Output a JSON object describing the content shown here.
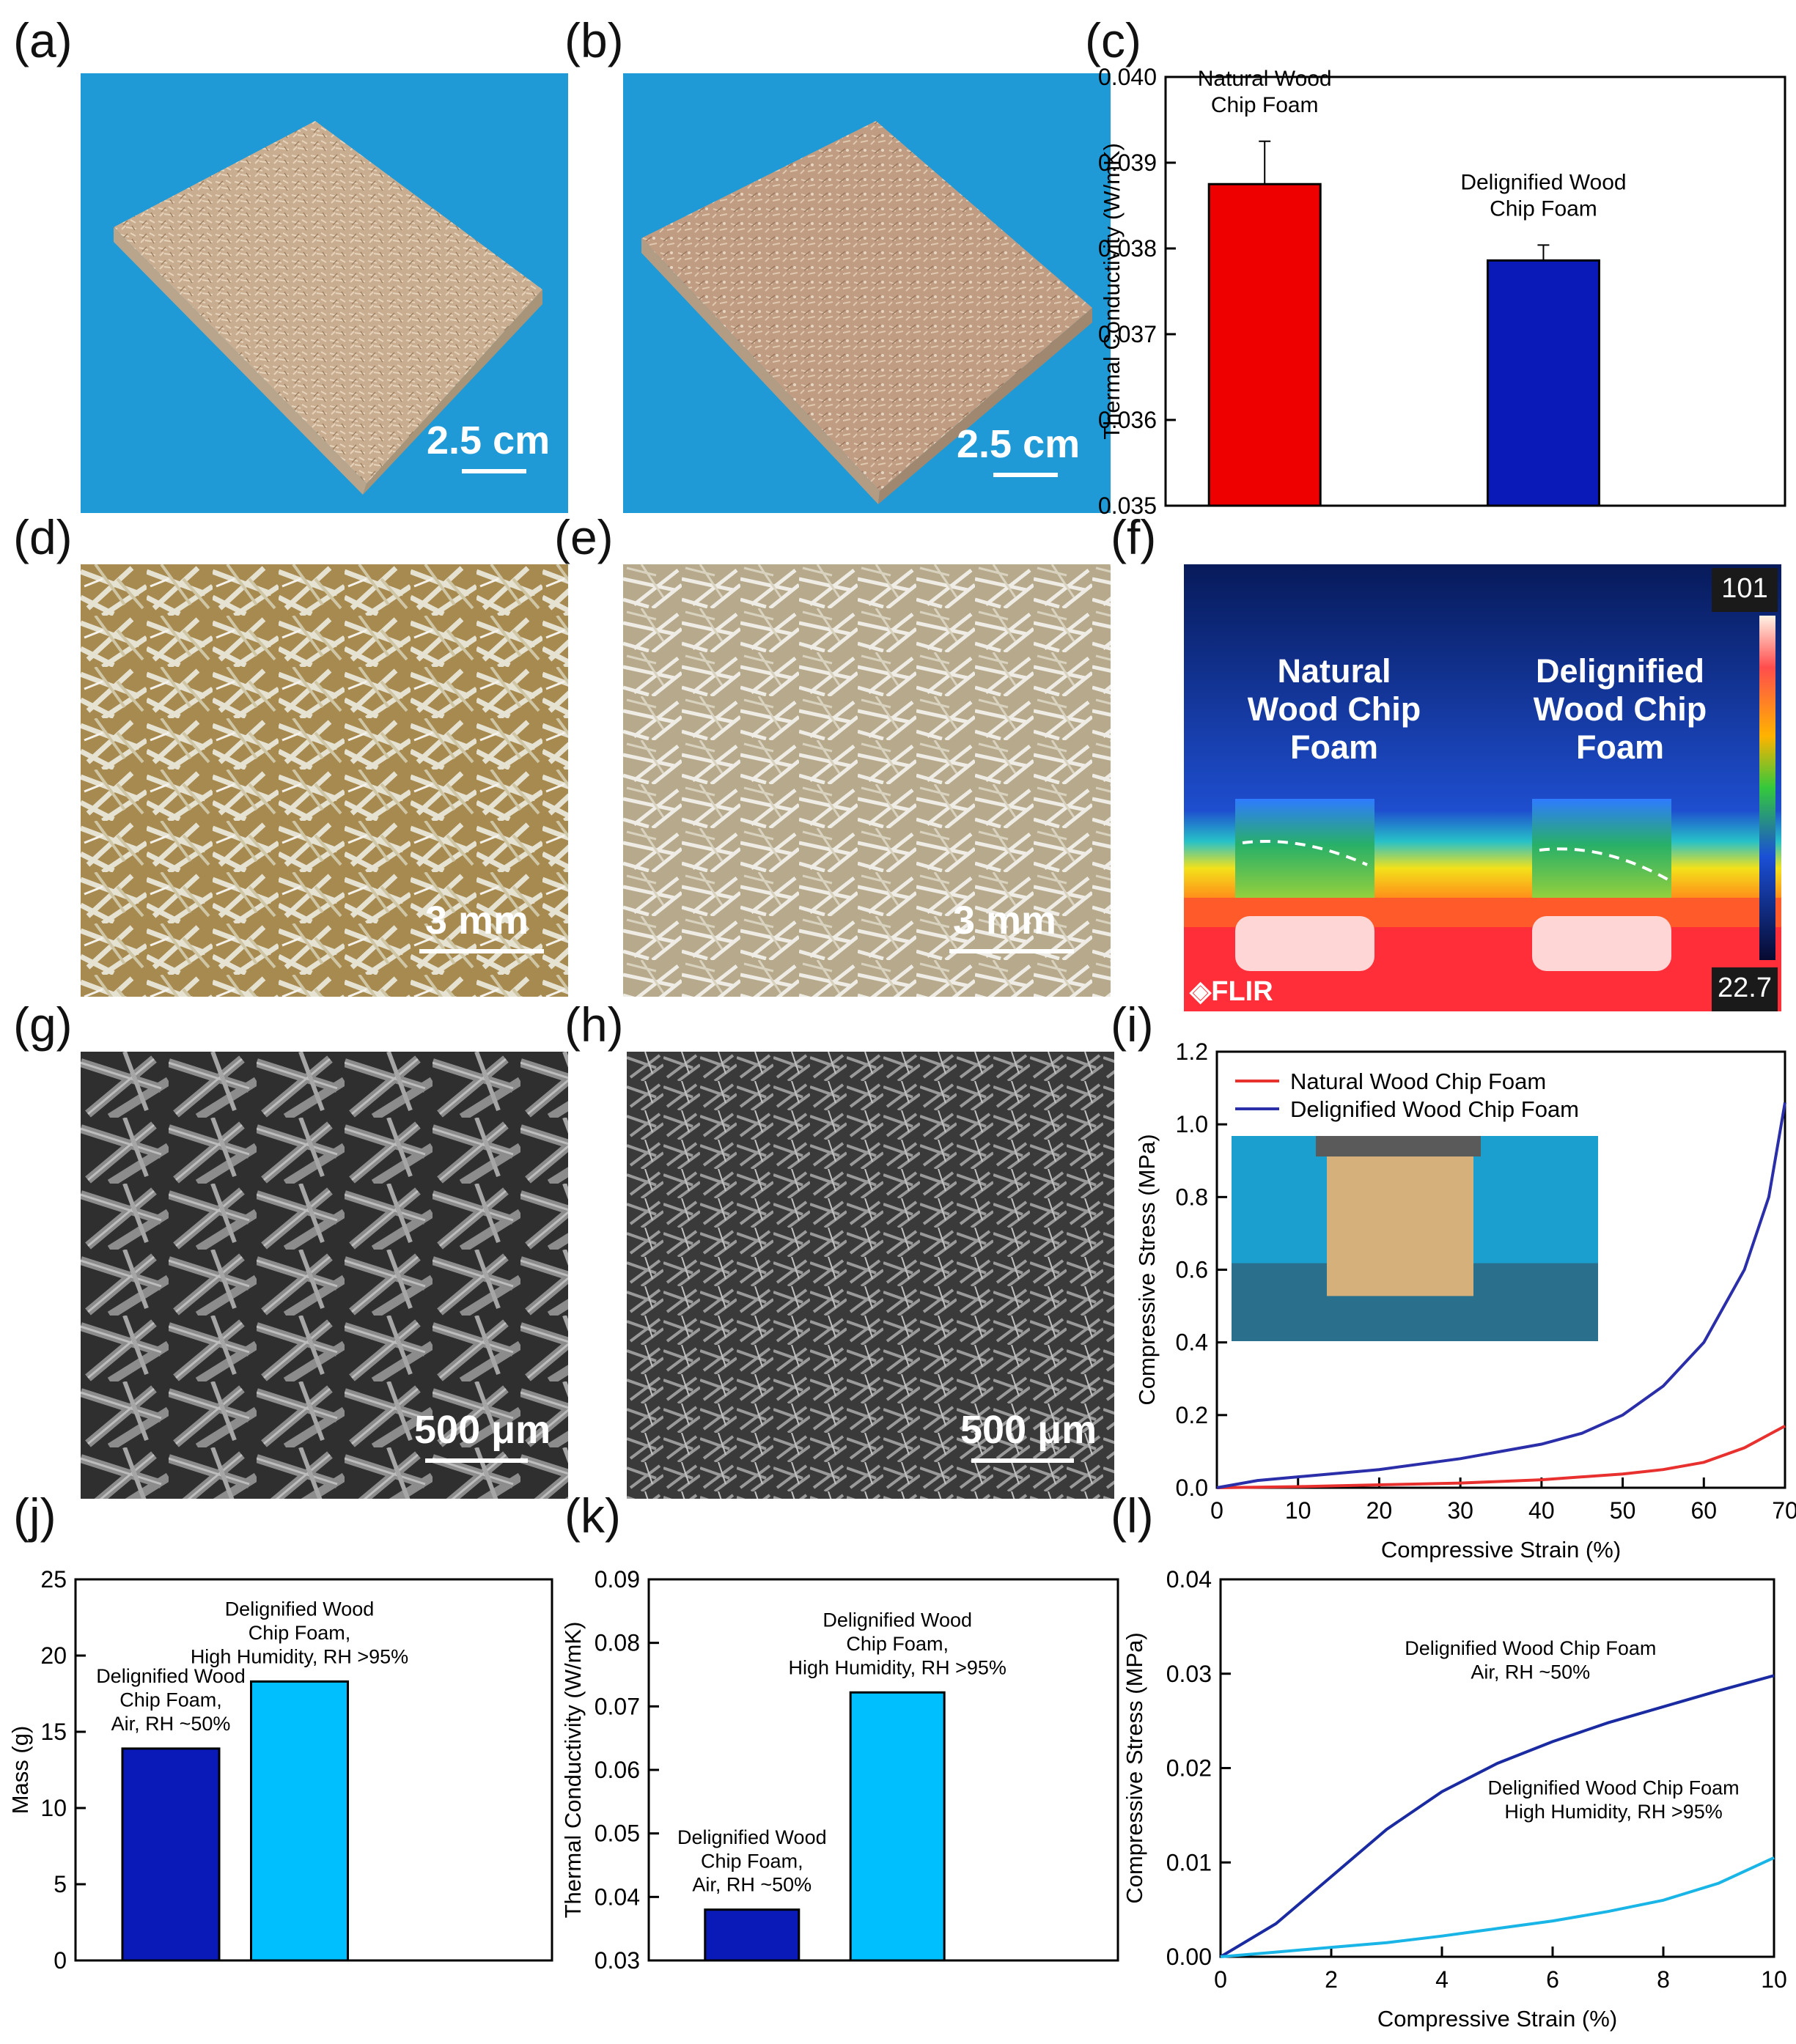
{
  "figure": {
    "labels": [
      "(a)",
      "(b)",
      "(c)",
      "(d)",
      "(e)",
      "(f)",
      "(g)",
      "(h)",
      "(i)",
      "(j)",
      "(k)",
      "(l)"
    ],
    "photos": {
      "a": {
        "scale": "2.5 cm",
        "background": "#1f9ad6"
      },
      "b": {
        "scale": "2.5 cm",
        "background": "#1f9ad6"
      },
      "d": {
        "scale": "3 mm"
      },
      "e": {
        "scale": "3 mm"
      },
      "g": {
        "scale": "500 μm"
      },
      "h": {
        "scale": "500 μm"
      }
    },
    "thermal": {
      "left_label": [
        "Natural",
        "Wood Chip",
        "Foam"
      ],
      "right_label": [
        "Delignified",
        "Wood Chip",
        "Foam"
      ],
      "max": "101",
      "min": "22.7",
      "brand": "FLIR"
    }
  },
  "chart_data": [
    {
      "id": "c",
      "type": "bar",
      "categories": [
        "Natural Wood Chip Foam",
        "Delignified Wood Chip Foam"
      ],
      "category_labels": [
        [
          "Natural Wood",
          "Chip Foam"
        ],
        [
          "Delignified Wood",
          "Chip Foam"
        ]
      ],
      "values": [
        0.03875,
        0.03786
      ],
      "errors": [
        0.0005,
        0.00018
      ],
      "colors": [
        "#ee0000",
        "#0a1ab8"
      ],
      "ylabel": "Thermal Conductivity (W/mK)",
      "ylim": [
        0.035,
        0.04
      ],
      "yticks": [
        "0.035",
        "0.036",
        "0.037",
        "0.038",
        "0.039",
        "0.040"
      ]
    },
    {
      "id": "i",
      "type": "line",
      "xlabel": "Compressive Strain (%)",
      "ylabel": "Compressive Stress (MPa)",
      "xlim": [
        0,
        70
      ],
      "ylim": [
        0,
        1.2
      ],
      "xticks": [
        "0",
        "10",
        "20",
        "30",
        "40",
        "50",
        "60",
        "70"
      ],
      "yticks": [
        "0.0",
        "0.2",
        "0.4",
        "0.6",
        "0.8",
        "1.0",
        "1.2"
      ],
      "series": [
        {
          "name": "Natural Wood Chip Foam",
          "color": "#e8312f",
          "x": [
            0,
            10,
            20,
            30,
            40,
            50,
            55,
            60,
            65,
            70
          ],
          "y": [
            0,
            0.003,
            0.008,
            0.013,
            0.022,
            0.038,
            0.05,
            0.07,
            0.11,
            0.17
          ]
        },
        {
          "name": "Delignified Wood Chip Foam",
          "color": "#2a2ea8",
          "x": [
            0,
            5,
            10,
            20,
            30,
            40,
            45,
            50,
            55,
            60,
            65,
            68,
            70
          ],
          "y": [
            0,
            0.02,
            0.03,
            0.05,
            0.08,
            0.12,
            0.15,
            0.2,
            0.28,
            0.4,
            0.6,
            0.8,
            1.06
          ]
        }
      ]
    },
    {
      "id": "j",
      "type": "bar",
      "categories": [
        "Delignified Wood Chip Foam, Air, RH ~50%",
        "Delignified Wood Chip Foam, High Humidity, RH >95%"
      ],
      "category_labels": [
        [
          "Delignified Wood",
          "Chip Foam,",
          "Air, RH ~50%"
        ],
        [
          "Delignified Wood",
          "Chip Foam,",
          "High Humidity, RH >95%"
        ]
      ],
      "values": [
        13.9,
        18.3
      ],
      "colors": [
        "#0a1ab8",
        "#00bfff"
      ],
      "ylabel": "Mass (g)",
      "ylim": [
        0,
        25
      ],
      "yticks": [
        "0",
        "5",
        "10",
        "15",
        "20",
        "25"
      ]
    },
    {
      "id": "k",
      "type": "bar",
      "categories": [
        "Delignified Wood Chip Foam, Air, RH ~50%",
        "Delignified Wood Chip Foam, High Humidity, RH >95%"
      ],
      "category_labels": [
        [
          "Delignified Wood",
          "Chip Foam,",
          "Air, RH ~50%"
        ],
        [
          "Delignified Wood",
          "Chip Foam,",
          "High Humidity, RH >95%"
        ]
      ],
      "values": [
        0.038,
        0.0722
      ],
      "colors": [
        "#0a1ab8",
        "#00bfff"
      ],
      "ylabel": "Thermal Conductivity (W/mK)",
      "ylim": [
        0.03,
        0.09
      ],
      "yticks": [
        "0.03",
        "0.04",
        "0.05",
        "0.06",
        "0.07",
        "0.08",
        "0.09"
      ]
    },
    {
      "id": "l",
      "type": "line",
      "xlabel": "Compressive Strain (%)",
      "ylabel": "Compressive Stress (MPa)",
      "xlim": [
        0,
        10
      ],
      "ylim": [
        0,
        0.04
      ],
      "xticks": [
        "0",
        "2",
        "4",
        "6",
        "8",
        "10"
      ],
      "yticks": [
        "0.00",
        "0.01",
        "0.02",
        "0.03",
        "0.04"
      ],
      "series": [
        {
          "name": "Delignified Wood Chip Foam Air, RH ~50%",
          "label_lines": [
            "Delignified Wood Chip Foam",
            "Air, RH ~50%"
          ],
          "color": "#1a2aa0",
          "x": [
            0,
            1,
            2,
            3,
            4,
            5,
            6,
            7,
            8,
            9,
            10
          ],
          "y": [
            0,
            0.0035,
            0.0085,
            0.0135,
            0.0175,
            0.0205,
            0.0228,
            0.0248,
            0.0265,
            0.0282,
            0.0298
          ]
        },
        {
          "name": "Delignified Wood Chip Foam High Humidity, RH >95%",
          "label_lines": [
            "Delignified Wood Chip Foam",
            "High Humidity, RH >95%"
          ],
          "color": "#19b5e6",
          "x": [
            0,
            1,
            2,
            3,
            4,
            5,
            6,
            7,
            8,
            9,
            10
          ],
          "y": [
            0,
            0.0005,
            0.001,
            0.0015,
            0.0022,
            0.003,
            0.0038,
            0.0048,
            0.006,
            0.0078,
            0.0105
          ]
        }
      ]
    }
  ]
}
